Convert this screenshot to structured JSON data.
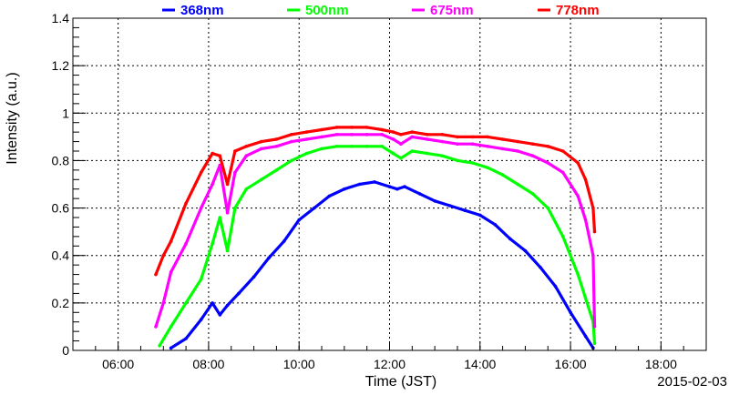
{
  "chart_data": {
    "type": "scatter",
    "xlabel": "Time (JST)",
    "ylabel": "Intensity (a.u.)",
    "date_label": "2015-02-03",
    "xlim": [
      "05:00",
      "19:00"
    ],
    "ylim": [
      0,
      1.4
    ],
    "x_ticks": [
      "06:00",
      "08:00",
      "10:00",
      "12:00",
      "14:00",
      "16:00",
      "18:00"
    ],
    "y_ticks": [
      "0",
      "0.2",
      "0.4",
      "0.6",
      "0.8",
      "1",
      "1.2",
      "1.4"
    ],
    "grid": true,
    "legend_position": "top",
    "series": [
      {
        "name": "368nm",
        "color": "#0000ff",
        "points": [
          [
            "07:10",
            0.01
          ],
          [
            "07:30",
            0.05
          ],
          [
            "07:50",
            0.13
          ],
          [
            "08:05",
            0.2
          ],
          [
            "08:15",
            0.15
          ],
          [
            "08:25",
            0.19
          ],
          [
            "08:40",
            0.24
          ],
          [
            "09:00",
            0.31
          ],
          [
            "09:20",
            0.39
          ],
          [
            "09:40",
            0.46
          ],
          [
            "10:00",
            0.55
          ],
          [
            "10:20",
            0.6
          ],
          [
            "10:40",
            0.65
          ],
          [
            "11:00",
            0.68
          ],
          [
            "11:20",
            0.7
          ],
          [
            "11:40",
            0.71
          ],
          [
            "12:00",
            0.69
          ],
          [
            "12:10",
            0.68
          ],
          [
            "12:20",
            0.69
          ],
          [
            "12:40",
            0.66
          ],
          [
            "13:00",
            0.63
          ],
          [
            "13:20",
            0.61
          ],
          [
            "13:40",
            0.59
          ],
          [
            "14:00",
            0.57
          ],
          [
            "14:20",
            0.53
          ],
          [
            "14:40",
            0.47
          ],
          [
            "15:00",
            0.42
          ],
          [
            "15:20",
            0.35
          ],
          [
            "15:40",
            0.27
          ],
          [
            "16:00",
            0.16
          ],
          [
            "16:20",
            0.06
          ],
          [
            "16:30",
            0.01
          ]
        ]
      },
      {
        "name": "500nm",
        "color": "#00ff00",
        "points": [
          [
            "06:55",
            0.02
          ],
          [
            "07:10",
            0.1
          ],
          [
            "07:30",
            0.2
          ],
          [
            "07:50",
            0.3
          ],
          [
            "08:05",
            0.45
          ],
          [
            "08:15",
            0.56
          ],
          [
            "08:25",
            0.42
          ],
          [
            "08:35",
            0.6
          ],
          [
            "08:50",
            0.68
          ],
          [
            "09:10",
            0.72
          ],
          [
            "09:30",
            0.76
          ],
          [
            "09:50",
            0.8
          ],
          [
            "10:10",
            0.83
          ],
          [
            "10:30",
            0.85
          ],
          [
            "10:50",
            0.86
          ],
          [
            "11:10",
            0.86
          ],
          [
            "11:30",
            0.86
          ],
          [
            "11:50",
            0.86
          ],
          [
            "12:05",
            0.83
          ],
          [
            "12:15",
            0.81
          ],
          [
            "12:30",
            0.84
          ],
          [
            "12:50",
            0.83
          ],
          [
            "13:10",
            0.82
          ],
          [
            "13:30",
            0.8
          ],
          [
            "13:50",
            0.79
          ],
          [
            "14:10",
            0.77
          ],
          [
            "14:30",
            0.74
          ],
          [
            "14:50",
            0.7
          ],
          [
            "15:10",
            0.66
          ],
          [
            "15:30",
            0.6
          ],
          [
            "15:50",
            0.48
          ],
          [
            "16:10",
            0.32
          ],
          [
            "16:20",
            0.22
          ],
          [
            "16:30",
            0.12
          ],
          [
            "16:32",
            0.03
          ]
        ]
      },
      {
        "name": "675nm",
        "color": "#ff00ff",
        "points": [
          [
            "06:50",
            0.1
          ],
          [
            "07:00",
            0.2
          ],
          [
            "07:10",
            0.33
          ],
          [
            "07:30",
            0.45
          ],
          [
            "07:50",
            0.6
          ],
          [
            "08:05",
            0.7
          ],
          [
            "08:15",
            0.78
          ],
          [
            "08:25",
            0.58
          ],
          [
            "08:35",
            0.75
          ],
          [
            "08:50",
            0.82
          ],
          [
            "09:10",
            0.85
          ],
          [
            "09:30",
            0.86
          ],
          [
            "09:50",
            0.88
          ],
          [
            "10:10",
            0.89
          ],
          [
            "10:30",
            0.9
          ],
          [
            "10:50",
            0.91
          ],
          [
            "11:10",
            0.91
          ],
          [
            "11:30",
            0.91
          ],
          [
            "11:50",
            0.91
          ],
          [
            "12:05",
            0.89
          ],
          [
            "12:15",
            0.87
          ],
          [
            "12:30",
            0.9
          ],
          [
            "12:50",
            0.89
          ],
          [
            "13:10",
            0.88
          ],
          [
            "13:30",
            0.87
          ],
          [
            "13:50",
            0.87
          ],
          [
            "14:10",
            0.86
          ],
          [
            "14:30",
            0.85
          ],
          [
            "14:50",
            0.84
          ],
          [
            "15:10",
            0.82
          ],
          [
            "15:30",
            0.79
          ],
          [
            "15:50",
            0.75
          ],
          [
            "16:10",
            0.65
          ],
          [
            "16:20",
            0.55
          ],
          [
            "16:30",
            0.4
          ],
          [
            "16:32",
            0.1
          ]
        ]
      },
      {
        "name": "778nm",
        "color": "#ff0000",
        "points": [
          [
            "06:50",
            0.32
          ],
          [
            "07:00",
            0.4
          ],
          [
            "07:10",
            0.46
          ],
          [
            "07:30",
            0.62
          ],
          [
            "07:50",
            0.75
          ],
          [
            "08:05",
            0.83
          ],
          [
            "08:15",
            0.82
          ],
          [
            "08:25",
            0.7
          ],
          [
            "08:35",
            0.84
          ],
          [
            "08:50",
            0.86
          ],
          [
            "09:10",
            0.88
          ],
          [
            "09:30",
            0.89
          ],
          [
            "09:50",
            0.91
          ],
          [
            "10:10",
            0.92
          ],
          [
            "10:30",
            0.93
          ],
          [
            "10:50",
            0.94
          ],
          [
            "11:10",
            0.94
          ],
          [
            "11:30",
            0.94
          ],
          [
            "11:50",
            0.93
          ],
          [
            "12:05",
            0.92
          ],
          [
            "12:15",
            0.91
          ],
          [
            "12:30",
            0.92
          ],
          [
            "12:50",
            0.91
          ],
          [
            "13:10",
            0.91
          ],
          [
            "13:30",
            0.9
          ],
          [
            "13:50",
            0.9
          ],
          [
            "14:10",
            0.9
          ],
          [
            "14:30",
            0.89
          ],
          [
            "14:50",
            0.88
          ],
          [
            "15:10",
            0.87
          ],
          [
            "15:30",
            0.86
          ],
          [
            "15:50",
            0.84
          ],
          [
            "16:10",
            0.79
          ],
          [
            "16:20",
            0.72
          ],
          [
            "16:30",
            0.6
          ],
          [
            "16:32",
            0.5
          ]
        ]
      }
    ]
  }
}
